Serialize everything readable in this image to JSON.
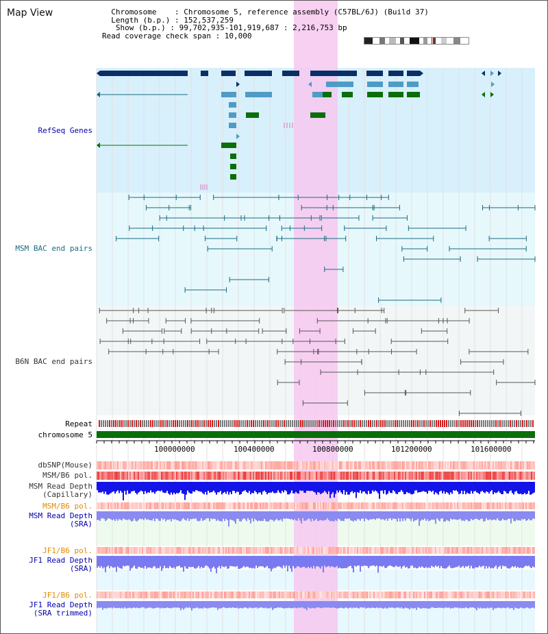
{
  "header": {
    "map_title": "Map View",
    "info_lines": [
      "  Chromosome    : Chromosome 5, reference assembly (C57BL/6J) (Build 37)",
      "  Length (b.p.) : 152,537,259",
      "   Show (b.p.) : 99,702,935-101,919,687 : 2,216,753 bp",
      "Read coverage check span : 10,000"
    ]
  },
  "tracks": {
    "refseq": {
      "label": "RefSeq Genes",
      "color": "#0000aa"
    },
    "msm_bac": {
      "label": "MSM BAC end pairs",
      "color": "#1a6a80"
    },
    "b6n_bac": {
      "label": "B6N BAC end pairs",
      "color": "#333333"
    },
    "repeat": {
      "label": "Repeat"
    },
    "chromosome": {
      "label": "chromosome 5"
    },
    "dbsnp": {
      "label": "dbSNP(Mouse)"
    },
    "msm_b6_pol_1": {
      "label": "MSM/B6 pol."
    },
    "msm_read_cap": {
      "label_line1": "MSM Read Depth",
      "label_line2": "(Capillary)"
    },
    "msm_b6_pol_2": {
      "label": "MSM/B6 pol.",
      "color": "#e08a00"
    },
    "msm_read_sra": {
      "label_line1": "MSM Read Depth",
      "label_line2": "(SRA)"
    },
    "jf1_b6_pol_1": {
      "label": "JF1/B6 pol.",
      "color": "#e08a00"
    },
    "jf1_read_sra": {
      "label_line1": "JF1 Read Depth",
      "label_line2": "(SRA)"
    },
    "jf1_b6_pol_2": {
      "label": "JF1/B6 pol.",
      "color": "#e08a00"
    },
    "jf1_read_trim": {
      "label_line1": "JF1 Read Depth",
      "label_line2": "(SRA trimmed)"
    }
  },
  "axis": {
    "ticks": [
      "100000000",
      "100400000",
      "100800000",
      "101200000",
      "101600000"
    ]
  },
  "colors": {
    "highlight": "#f6c8f0",
    "refseq_bg": "#d8f0fb",
    "msm_bg": "#e6f8fb",
    "b6n_bg": "#f3f6f7",
    "gene_dark": "#0a2f66",
    "gene_mid": "#4e9cc4",
    "gene_green": "#0a6e0a",
    "chrom_green": "#0a6e0a"
  }
}
